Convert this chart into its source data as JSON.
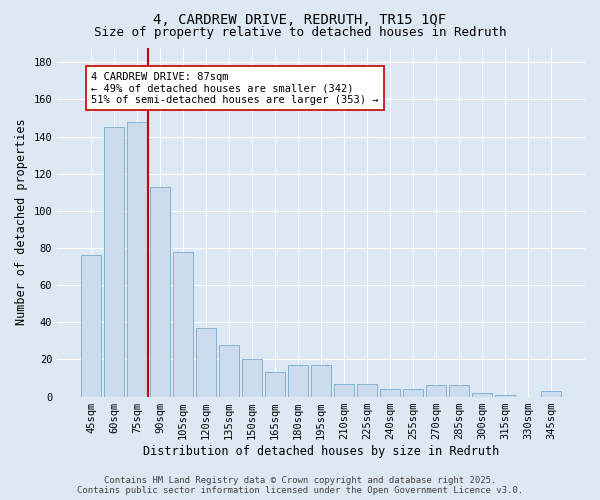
{
  "title": "4, CARDREW DRIVE, REDRUTH, TR15 1QF",
  "subtitle": "Size of property relative to detached houses in Redruth",
  "xlabel": "Distribution of detached houses by size in Redruth",
  "ylabel": "Number of detached properties",
  "categories": [
    "45sqm",
    "60sqm",
    "75sqm",
    "90sqm",
    "105sqm",
    "120sqm",
    "135sqm",
    "150sqm",
    "165sqm",
    "180sqm",
    "195sqm",
    "210sqm",
    "225sqm",
    "240sqm",
    "255sqm",
    "270sqm",
    "285sqm",
    "300sqm",
    "315sqm",
    "330sqm",
    "345sqm"
  ],
  "values": [
    76,
    145,
    148,
    113,
    78,
    37,
    28,
    20,
    13,
    17,
    17,
    7,
    7,
    4,
    4,
    6,
    6,
    2,
    1,
    0,
    3
  ],
  "bar_color": "#ccdcec",
  "bar_edge_color": "#7aaacc",
  "vline_x": 2.5,
  "vline_color": "#cc0000",
  "annotation_text": "4 CARDREW DRIVE: 87sqm\n← 49% of detached houses are smaller (342)\n51% of semi-detached houses are larger (353) →",
  "annotation_box_color": "#ffffff",
  "annotation_box_edge": "#cc0000",
  "ylim": [
    0,
    188
  ],
  "yticks": [
    0,
    20,
    40,
    60,
    80,
    100,
    120,
    140,
    160,
    180
  ],
  "background_color": "#dce8f4",
  "grid_color": "#ffffff",
  "footer_text": "Contains HM Land Registry data © Crown copyright and database right 2025.\nContains public sector information licensed under the Open Government Licence v3.0.",
  "title_fontsize": 10,
  "subtitle_fontsize": 9,
  "xlabel_fontsize": 8.5,
  "ylabel_fontsize": 8.5,
  "tick_fontsize": 7.5,
  "annotation_fontsize": 7.5,
  "footer_fontsize": 6.5
}
